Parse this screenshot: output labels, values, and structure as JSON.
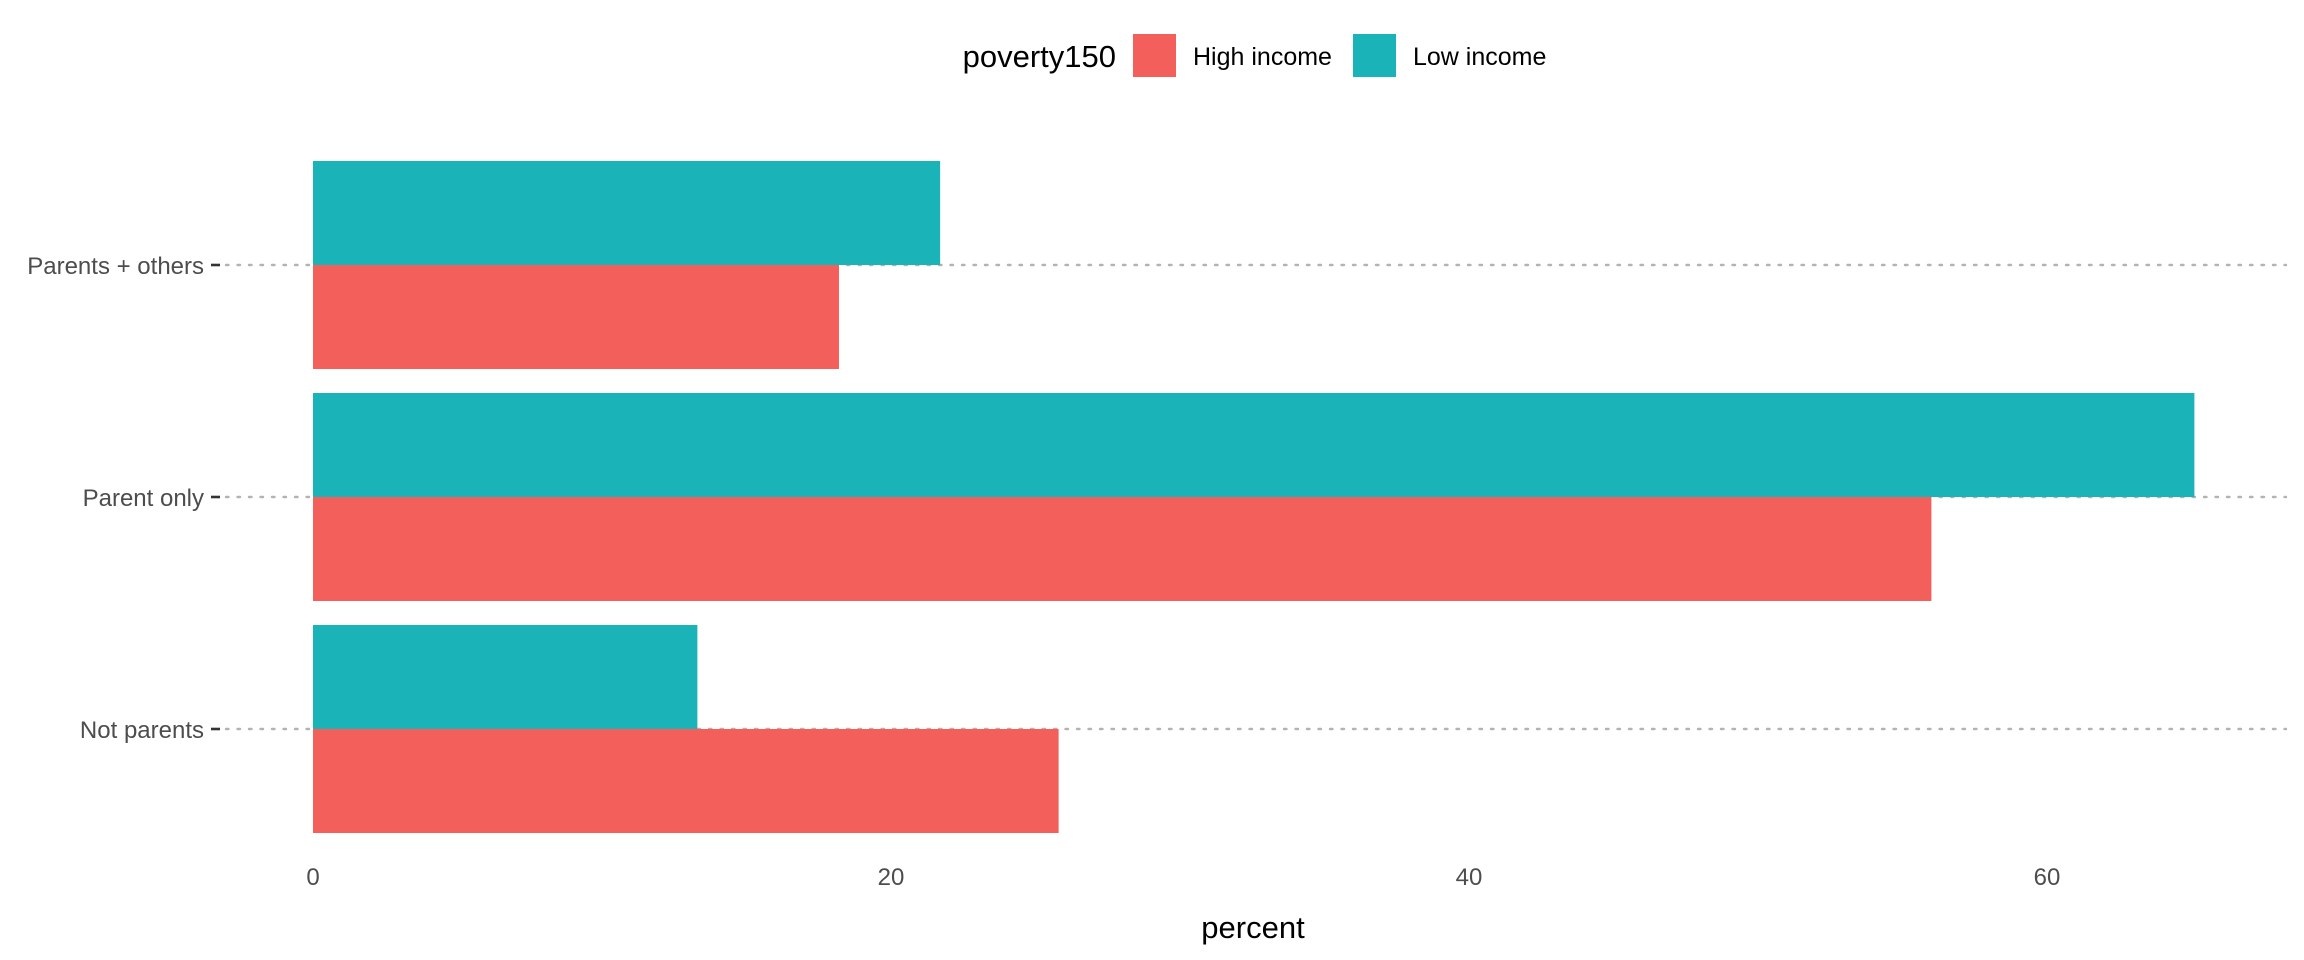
{
  "chart_data": {
    "type": "bar",
    "orientation": "horizontal",
    "categories": [
      "Parents + others",
      "Parent only",
      "Not parents"
    ],
    "series": [
      {
        "name": "High income",
        "color": "#F3605B",
        "values": [
          18.2,
          56.0,
          25.8
        ]
      },
      {
        "name": "Low income",
        "color": "#1AB3B7",
        "values": [
          21.7,
          65.1,
          13.3
        ]
      }
    ],
    "legend": {
      "title": "poverty150",
      "position": "top"
    },
    "xlabel": "percent",
    "ylabel": "",
    "xlim": [
      0,
      68.3
    ],
    "xticks": [
      0,
      20,
      40,
      60
    ],
    "grid": "dotted horizontal at categories"
  }
}
